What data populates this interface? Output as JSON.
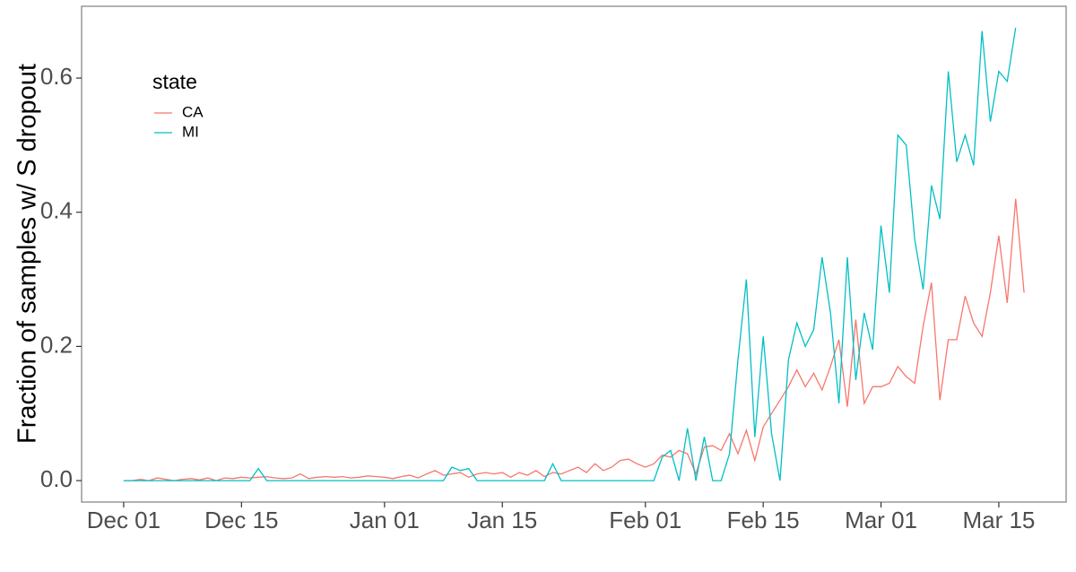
{
  "chart_data": {
    "type": "line",
    "y_label": "Fraction of samples w/ S dropout",
    "legend_title": "state",
    "legend_position": "top-left",
    "x": [
      "Dec 01",
      "Dec 02",
      "Dec 03",
      "Dec 04",
      "Dec 05",
      "Dec 06",
      "Dec 07",
      "Dec 08",
      "Dec 09",
      "Dec 10",
      "Dec 11",
      "Dec 12",
      "Dec 13",
      "Dec 14",
      "Dec 15",
      "Dec 16",
      "Dec 17",
      "Dec 18",
      "Dec 19",
      "Dec 20",
      "Dec 21",
      "Dec 22",
      "Dec 23",
      "Dec 24",
      "Dec 25",
      "Dec 26",
      "Dec 27",
      "Dec 28",
      "Dec 29",
      "Dec 30",
      "Dec 31",
      "Jan 01",
      "Jan 02",
      "Jan 03",
      "Jan 04",
      "Jan 05",
      "Jan 06",
      "Jan 07",
      "Jan 08",
      "Jan 09",
      "Jan 10",
      "Jan 11",
      "Jan 12",
      "Jan 13",
      "Jan 14",
      "Jan 15",
      "Jan 16",
      "Jan 17",
      "Jan 18",
      "Jan 19",
      "Jan 20",
      "Jan 21",
      "Jan 22",
      "Jan 23",
      "Jan 24",
      "Jan 25",
      "Jan 26",
      "Jan 27",
      "Jan 28",
      "Jan 29",
      "Jan 30",
      "Jan 31",
      "Feb 01",
      "Feb 02",
      "Feb 03",
      "Feb 04",
      "Feb 05",
      "Feb 06",
      "Feb 07",
      "Feb 08",
      "Feb 09",
      "Feb 10",
      "Feb 11",
      "Feb 12",
      "Feb 13",
      "Feb 14",
      "Feb 15",
      "Feb 16",
      "Feb 17",
      "Feb 18",
      "Feb 19",
      "Feb 20",
      "Feb 21",
      "Feb 22",
      "Feb 23",
      "Feb 24",
      "Feb 25",
      "Feb 26",
      "Feb 27",
      "Feb 28",
      "Mar 01",
      "Mar 02",
      "Mar 03",
      "Mar 04",
      "Mar 05",
      "Mar 06",
      "Mar 07",
      "Mar 08",
      "Mar 09",
      "Mar 10",
      "Mar 11",
      "Mar 12",
      "Mar 13",
      "Mar 14",
      "Mar 15",
      "Mar 16",
      "Mar 17",
      "Mar 18"
    ],
    "series": [
      {
        "name": "CA",
        "color": "#F8766D",
        "values": [
          0,
          0,
          0.002,
          0,
          0.004,
          0.002,
          0,
          0.002,
          0.003,
          0.001,
          0.004,
          0,
          0.004,
          0.003,
          0.005,
          0.004,
          0.005,
          0.006,
          0.004,
          0.003,
          0.004,
          0.01,
          0.003,
          0.005,
          0.006,
          0.005,
          0.006,
          0.004,
          0.005,
          0.007,
          0.006,
          0.005,
          0.003,
          0.006,
          0.008,
          0.004,
          0.01,
          0.015,
          0.008,
          0.01,
          0.012,
          0.005,
          0.01,
          0.012,
          0.01,
          0.012,
          0.005,
          0.012,
          0.008,
          0.015,
          0.006,
          0.012,
          0.01,
          0.015,
          0.02,
          0.012,
          0.025,
          0.015,
          0.02,
          0.03,
          0.032,
          0.025,
          0.02,
          0.025,
          0.038,
          0.035,
          0.045,
          0.04,
          0.01,
          0.05,
          0.052,
          0.045,
          0.07,
          0.04,
          0.075,
          0.03,
          0.08,
          0.1,
          0.12,
          0.14,
          0.165,
          0.14,
          0.16,
          0.135,
          0.17,
          0.21,
          0.11,
          0.24,
          0.115,
          0.14,
          0.14,
          0.145,
          0.17,
          0.155,
          0.145,
          0.23,
          0.295,
          0.12,
          0.21,
          0.21,
          0.275,
          0.235,
          0.215,
          0.28,
          0.365,
          0.265,
          0.42,
          0.28
        ]
      },
      {
        "name": "MI",
        "color": "#00BFC4",
        "values": [
          0,
          0,
          0,
          0,
          0,
          0,
          0,
          0,
          0,
          0,
          0,
          0,
          0,
          0,
          0,
          0,
          0.018,
          0,
          0,
          0,
          0,
          0,
          0,
          0,
          0,
          0,
          0,
          0,
          0,
          0,
          0,
          0,
          0,
          0,
          0,
          0,
          0,
          0,
          0,
          0.02,
          0.015,
          0.018,
          0,
          0,
          0,
          0,
          0,
          0,
          0,
          0,
          0,
          0.025,
          0,
          0,
          0,
          0,
          0,
          0,
          0,
          0,
          0,
          0,
          0,
          0,
          0.035,
          0.045,
          0,
          0.078,
          0,
          0.065,
          0,
          0,
          0.04,
          0.18,
          0.3,
          0.065,
          0.215,
          0.07,
          0,
          0.18,
          0.235,
          0.2,
          0.225,
          0.333,
          0.25,
          0.115,
          0.333,
          0.15,
          0.25,
          0.195,
          0.38,
          0.28,
          0.515,
          0.5,
          0.36,
          0.285,
          0.44,
          0.39,
          0.61,
          0.475,
          0.515,
          0.47,
          0.67,
          0.535,
          0.61,
          0.595,
          0.675,
          null
        ]
      }
    ],
    "xlim": [
      "Nov 26",
      "Mar 23"
    ],
    "xticks": [
      "Dec 01",
      "Dec 15",
      "Jan 01",
      "Jan 15",
      "Feb 01",
      "Feb 15",
      "Mar 01",
      "Mar 15"
    ],
    "ylim": [
      -0.032,
      0.707
    ],
    "yticks": [
      {
        "value": 0,
        "label": "0.0"
      },
      {
        "value": 0.2,
        "label": "0.2"
      },
      {
        "value": 0.4,
        "label": "0.4"
      },
      {
        "value": 0.6,
        "label": "0.6"
      }
    ],
    "grid": false
  }
}
